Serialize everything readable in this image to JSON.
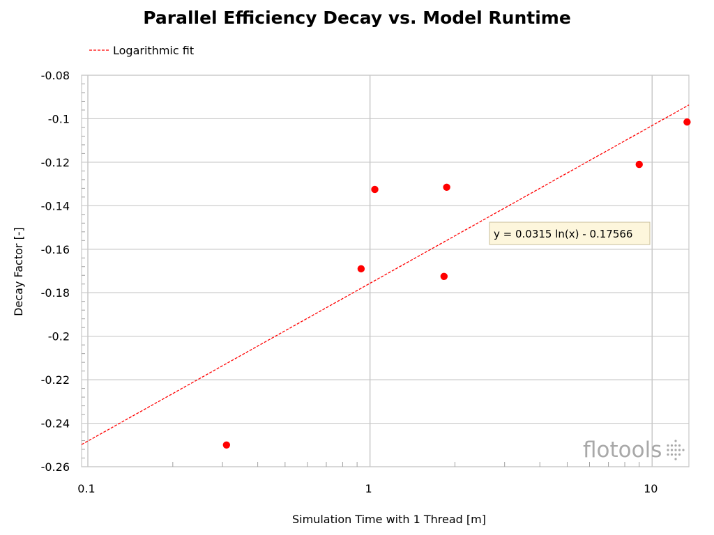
{
  "chart_data": {
    "type": "scatter",
    "title": "Parallel Efficiency Decay vs. Model Runtime",
    "xlabel": "Simulation Time with 1 Thread [m]",
    "ylabel": "Decay Factor [-]",
    "x_scale": "log",
    "xlim": [
      0.095,
      13.5
    ],
    "ylim": [
      -0.26,
      -0.08
    ],
    "x_tick_labels": [
      "0.1",
      "1",
      "10"
    ],
    "x_tick_values": [
      0.1,
      1,
      10
    ],
    "y_tick_labels": [
      "-0.08",
      "-0.1",
      "-0.12",
      "-0.14",
      "-0.16",
      "-0.18",
      "-0.2",
      "-0.22",
      "-0.24",
      "-0.26"
    ],
    "y_tick_values": [
      -0.08,
      -0.1,
      -0.12,
      -0.14,
      -0.16,
      -0.18,
      -0.2,
      -0.22,
      -0.24,
      -0.26
    ],
    "grid": true,
    "legend_position": "top-left",
    "series": [
      {
        "points": [
          {
            "x": 0.31,
            "y": -0.25
          },
          {
            "x": 0.93,
            "y": -0.169
          },
          {
            "x": 1.04,
            "y": -0.1325
          },
          {
            "x": 1.83,
            "y": -0.1725
          },
          {
            "x": 1.87,
            "y": -0.1315
          },
          {
            "x": 9.0,
            "y": -0.121
          },
          {
            "x": 13.3,
            "y": -0.1015
          }
        ],
        "color": "#ff0000"
      }
    ],
    "trendline": {
      "name": "Logarithmic fit",
      "a": 0.0315,
      "b": -0.17566,
      "equation_label": "y = 0.0315 ln(x) - 0.17566",
      "color": "#ff0000",
      "style": "dashed"
    },
    "watermark": "flotools"
  },
  "colors": {
    "grid": "#c8c8c8",
    "axis": "#a0a0a0",
    "marker": "#ff0000",
    "annotation_bg": "#fdf6dc",
    "annotation_border": "#c9bf9a",
    "watermark": "#a8a8a8"
  }
}
